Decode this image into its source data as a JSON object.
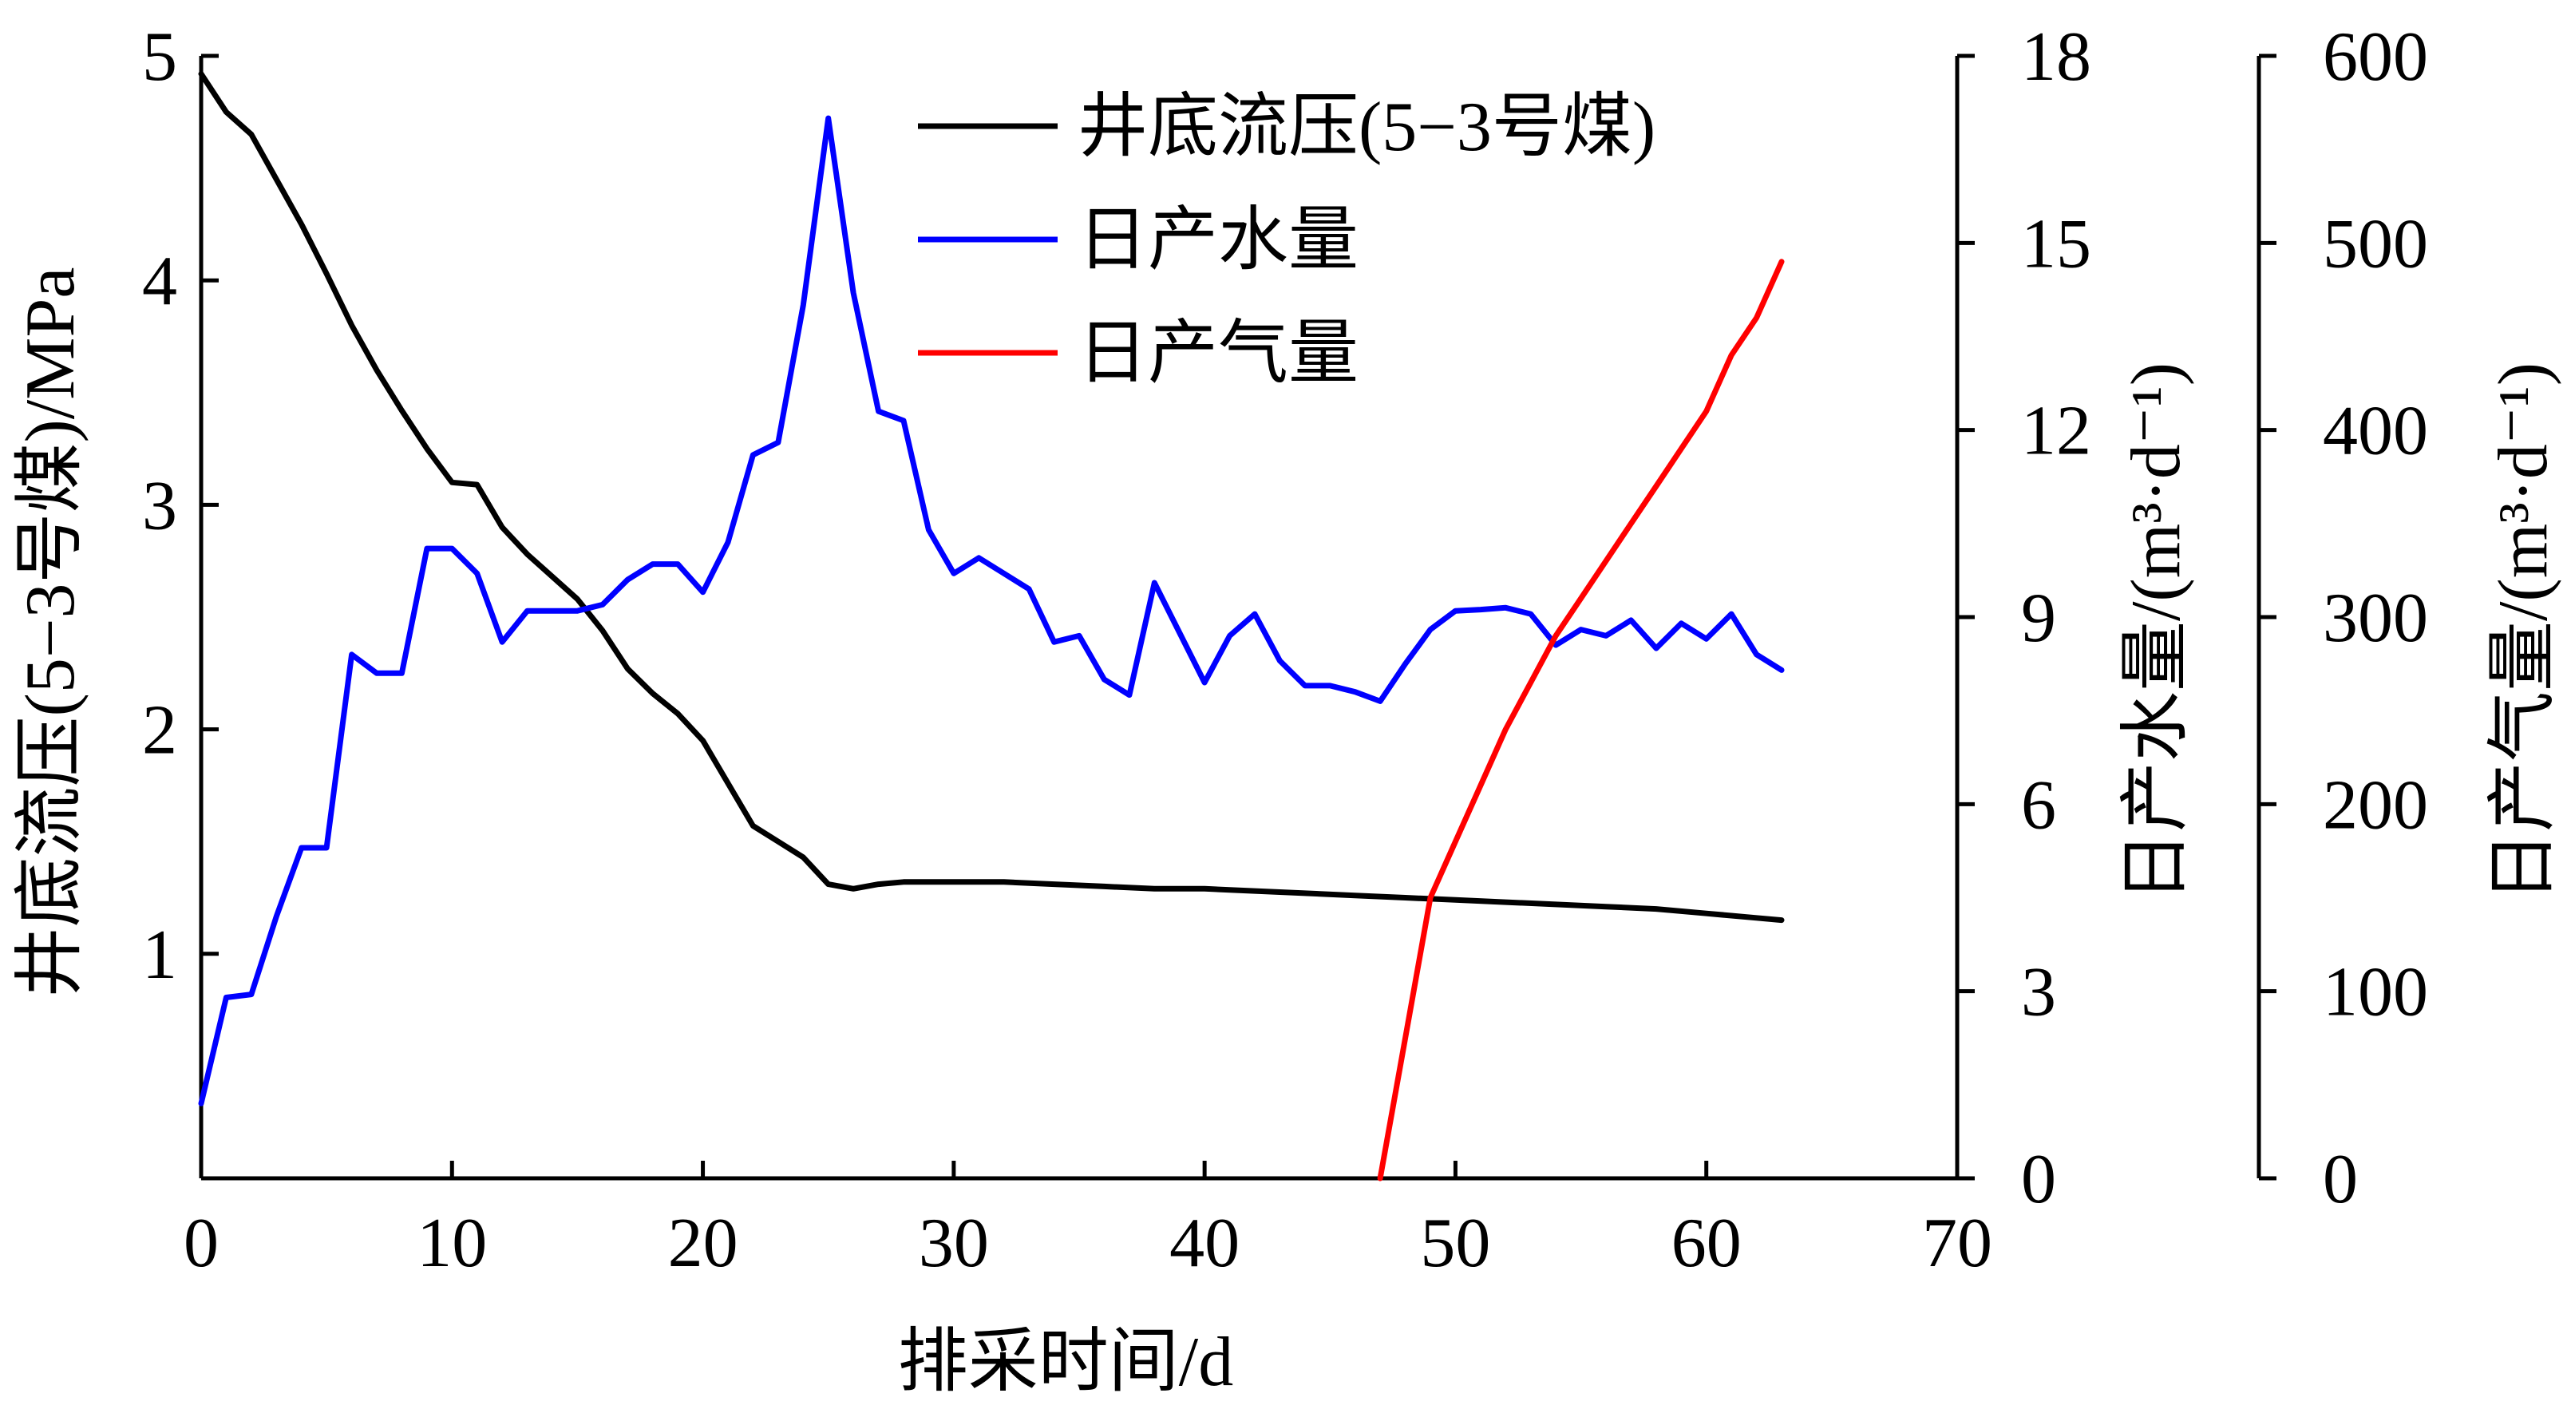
{
  "chart_data": {
    "type": "line",
    "xlabel": "排采时间/d",
    "xlim": [
      0,
      70
    ],
    "xticks": [
      "0",
      "10",
      "20",
      "30",
      "40",
      "50",
      "60",
      "70"
    ],
    "y_axes": [
      {
        "id": "pressure",
        "label": "井底流压(5−3号煤)/MPa",
        "ylim": [
          0,
          5
        ],
        "ticks": [
          "1",
          "2",
          "3",
          "4",
          "5"
        ],
        "position": "left"
      },
      {
        "id": "water",
        "label": "日产水量/(m³·d⁻¹)",
        "ylim": [
          0,
          18
        ],
        "ticks": [
          "0",
          "3",
          "6",
          "9",
          "12",
          "15",
          "18"
        ],
        "position": "right"
      },
      {
        "id": "gas",
        "label": "日产气量/(m³·d⁻¹)",
        "ylim": [
          0,
          600
        ],
        "ticks": [
          "0",
          "100",
          "200",
          "300",
          "400",
          "500",
          "600"
        ],
        "position": "far-right"
      }
    ],
    "legend_position": "top-right",
    "grid": false,
    "series": [
      {
        "name": "井底流压(5−3号煤)",
        "axis": "pressure",
        "color": "#000000",
        "x": [
          0,
          1,
          2,
          3,
          4,
          5,
          6,
          7,
          8,
          9,
          10,
          11,
          12,
          13,
          14,
          15,
          16,
          17,
          18,
          19,
          20,
          21,
          22,
          23,
          24,
          25,
          26,
          27,
          28,
          29,
          30,
          32,
          34,
          36,
          38,
          40,
          42,
          44,
          46,
          48,
          50,
          52,
          54,
          56,
          58,
          60,
          62,
          63
        ],
        "values": [
          4.92,
          4.75,
          4.65,
          4.45,
          4.25,
          4.03,
          3.8,
          3.6,
          3.42,
          3.25,
          3.1,
          3.09,
          2.9,
          2.78,
          2.68,
          2.58,
          2.44,
          2.27,
          2.16,
          2.07,
          1.95,
          1.76,
          1.57,
          1.5,
          1.43,
          1.31,
          1.29,
          1.31,
          1.32,
          1.32,
          1.32,
          1.32,
          1.31,
          1.3,
          1.29,
          1.29,
          1.28,
          1.27,
          1.26,
          1.25,
          1.24,
          1.23,
          1.22,
          1.21,
          1.2,
          1.18,
          1.16,
          1.15
        ]
      },
      {
        "name": "日产水量",
        "axis": "water",
        "color": "#0000ff",
        "x": [
          0,
          1,
          2,
          3,
          4,
          5,
          6,
          7,
          8,
          9,
          10,
          11,
          12,
          13,
          14,
          15,
          16,
          17,
          18,
          19,
          20,
          21,
          22,
          23,
          24,
          25,
          26,
          27,
          28,
          29,
          30,
          31,
          32,
          33,
          34,
          35,
          36,
          37,
          38,
          39,
          40,
          41,
          42,
          43,
          44,
          45,
          46,
          47,
          48,
          49,
          50,
          51,
          52,
          53,
          54,
          55,
          56,
          57,
          58,
          59,
          60,
          61,
          62,
          63
        ],
        "values": [
          1.2,
          2.9,
          2.95,
          4.2,
          5.3,
          5.3,
          8.4,
          8.1,
          8.1,
          10.1,
          10.1,
          9.7,
          8.6,
          9.1,
          9.1,
          9.1,
          9.2,
          9.6,
          9.85,
          9.85,
          9.4,
          10.2,
          11.6,
          11.8,
          14.0,
          17.0,
          14.2,
          12.3,
          12.15,
          10.4,
          9.7,
          9.95,
          9.7,
          9.45,
          8.6,
          8.7,
          8.0,
          7.75,
          9.55,
          8.75,
          7.95,
          8.7,
          9.05,
          8.3,
          7.9,
          7.9,
          7.8,
          7.65,
          8.25,
          8.8,
          9.1,
          9.12,
          9.15,
          9.05,
          8.55,
          8.8,
          8.7,
          8.95,
          8.5,
          8.9,
          8.65,
          9.05,
          8.4,
          8.15
        ]
      },
      {
        "name": "日产气量",
        "axis": "gas",
        "color": "#ff0000",
        "x": [
          47,
          48,
          49,
          50,
          51,
          52,
          53,
          54,
          55,
          56,
          57,
          58,
          59,
          60,
          61,
          62,
          63
        ],
        "values": [
          0,
          75,
          150,
          180,
          210,
          240,
          265,
          290,
          310,
          330,
          350,
          370,
          390,
          410,
          440,
          460,
          490
        ]
      }
    ]
  }
}
